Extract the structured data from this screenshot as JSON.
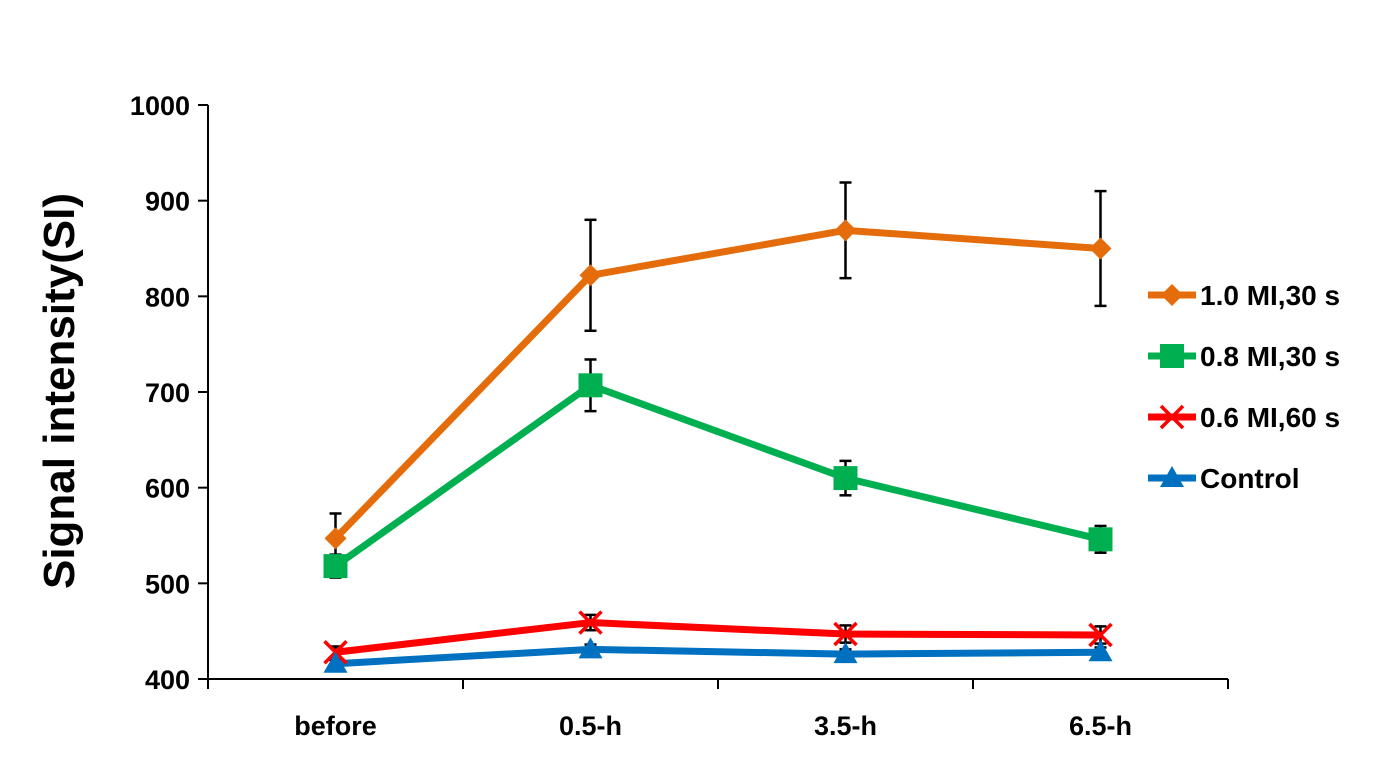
{
  "chart_data": {
    "type": "line",
    "title": "",
    "xlabel": "",
    "ylabel": "Signal intensity(SI)",
    "categories": [
      "before",
      "0.5-h",
      "3.5-h",
      "6.5-h"
    ],
    "ylim": [
      400,
      1000
    ],
    "yticks": [
      400,
      500,
      600,
      700,
      800,
      900,
      1000
    ],
    "grid": false,
    "legend_position": "right",
    "series": [
      {
        "name": "1.0 MI,30 s",
        "color": "#E46C0A",
        "marker": "diamond",
        "values": [
          547,
          822,
          869,
          850
        ],
        "error": [
          26,
          58,
          50,
          60
        ]
      },
      {
        "name": "0.8 MI,30 s",
        "color": "#00B050",
        "marker": "square",
        "values": [
          518,
          707,
          610,
          546
        ],
        "error": [
          12,
          27,
          18,
          14
        ]
      },
      {
        "name": "0.6 MI,60 s",
        "color": "#FF0000",
        "marker": "x",
        "values": [
          428,
          459,
          447,
          446
        ],
        "error": [
          6,
          8,
          9,
          9
        ]
      },
      {
        "name": "Control",
        "color": "#0070C0",
        "marker": "triangle",
        "values": [
          416,
          431,
          426,
          428
        ],
        "error": [
          4,
          5,
          5,
          5
        ]
      }
    ]
  }
}
